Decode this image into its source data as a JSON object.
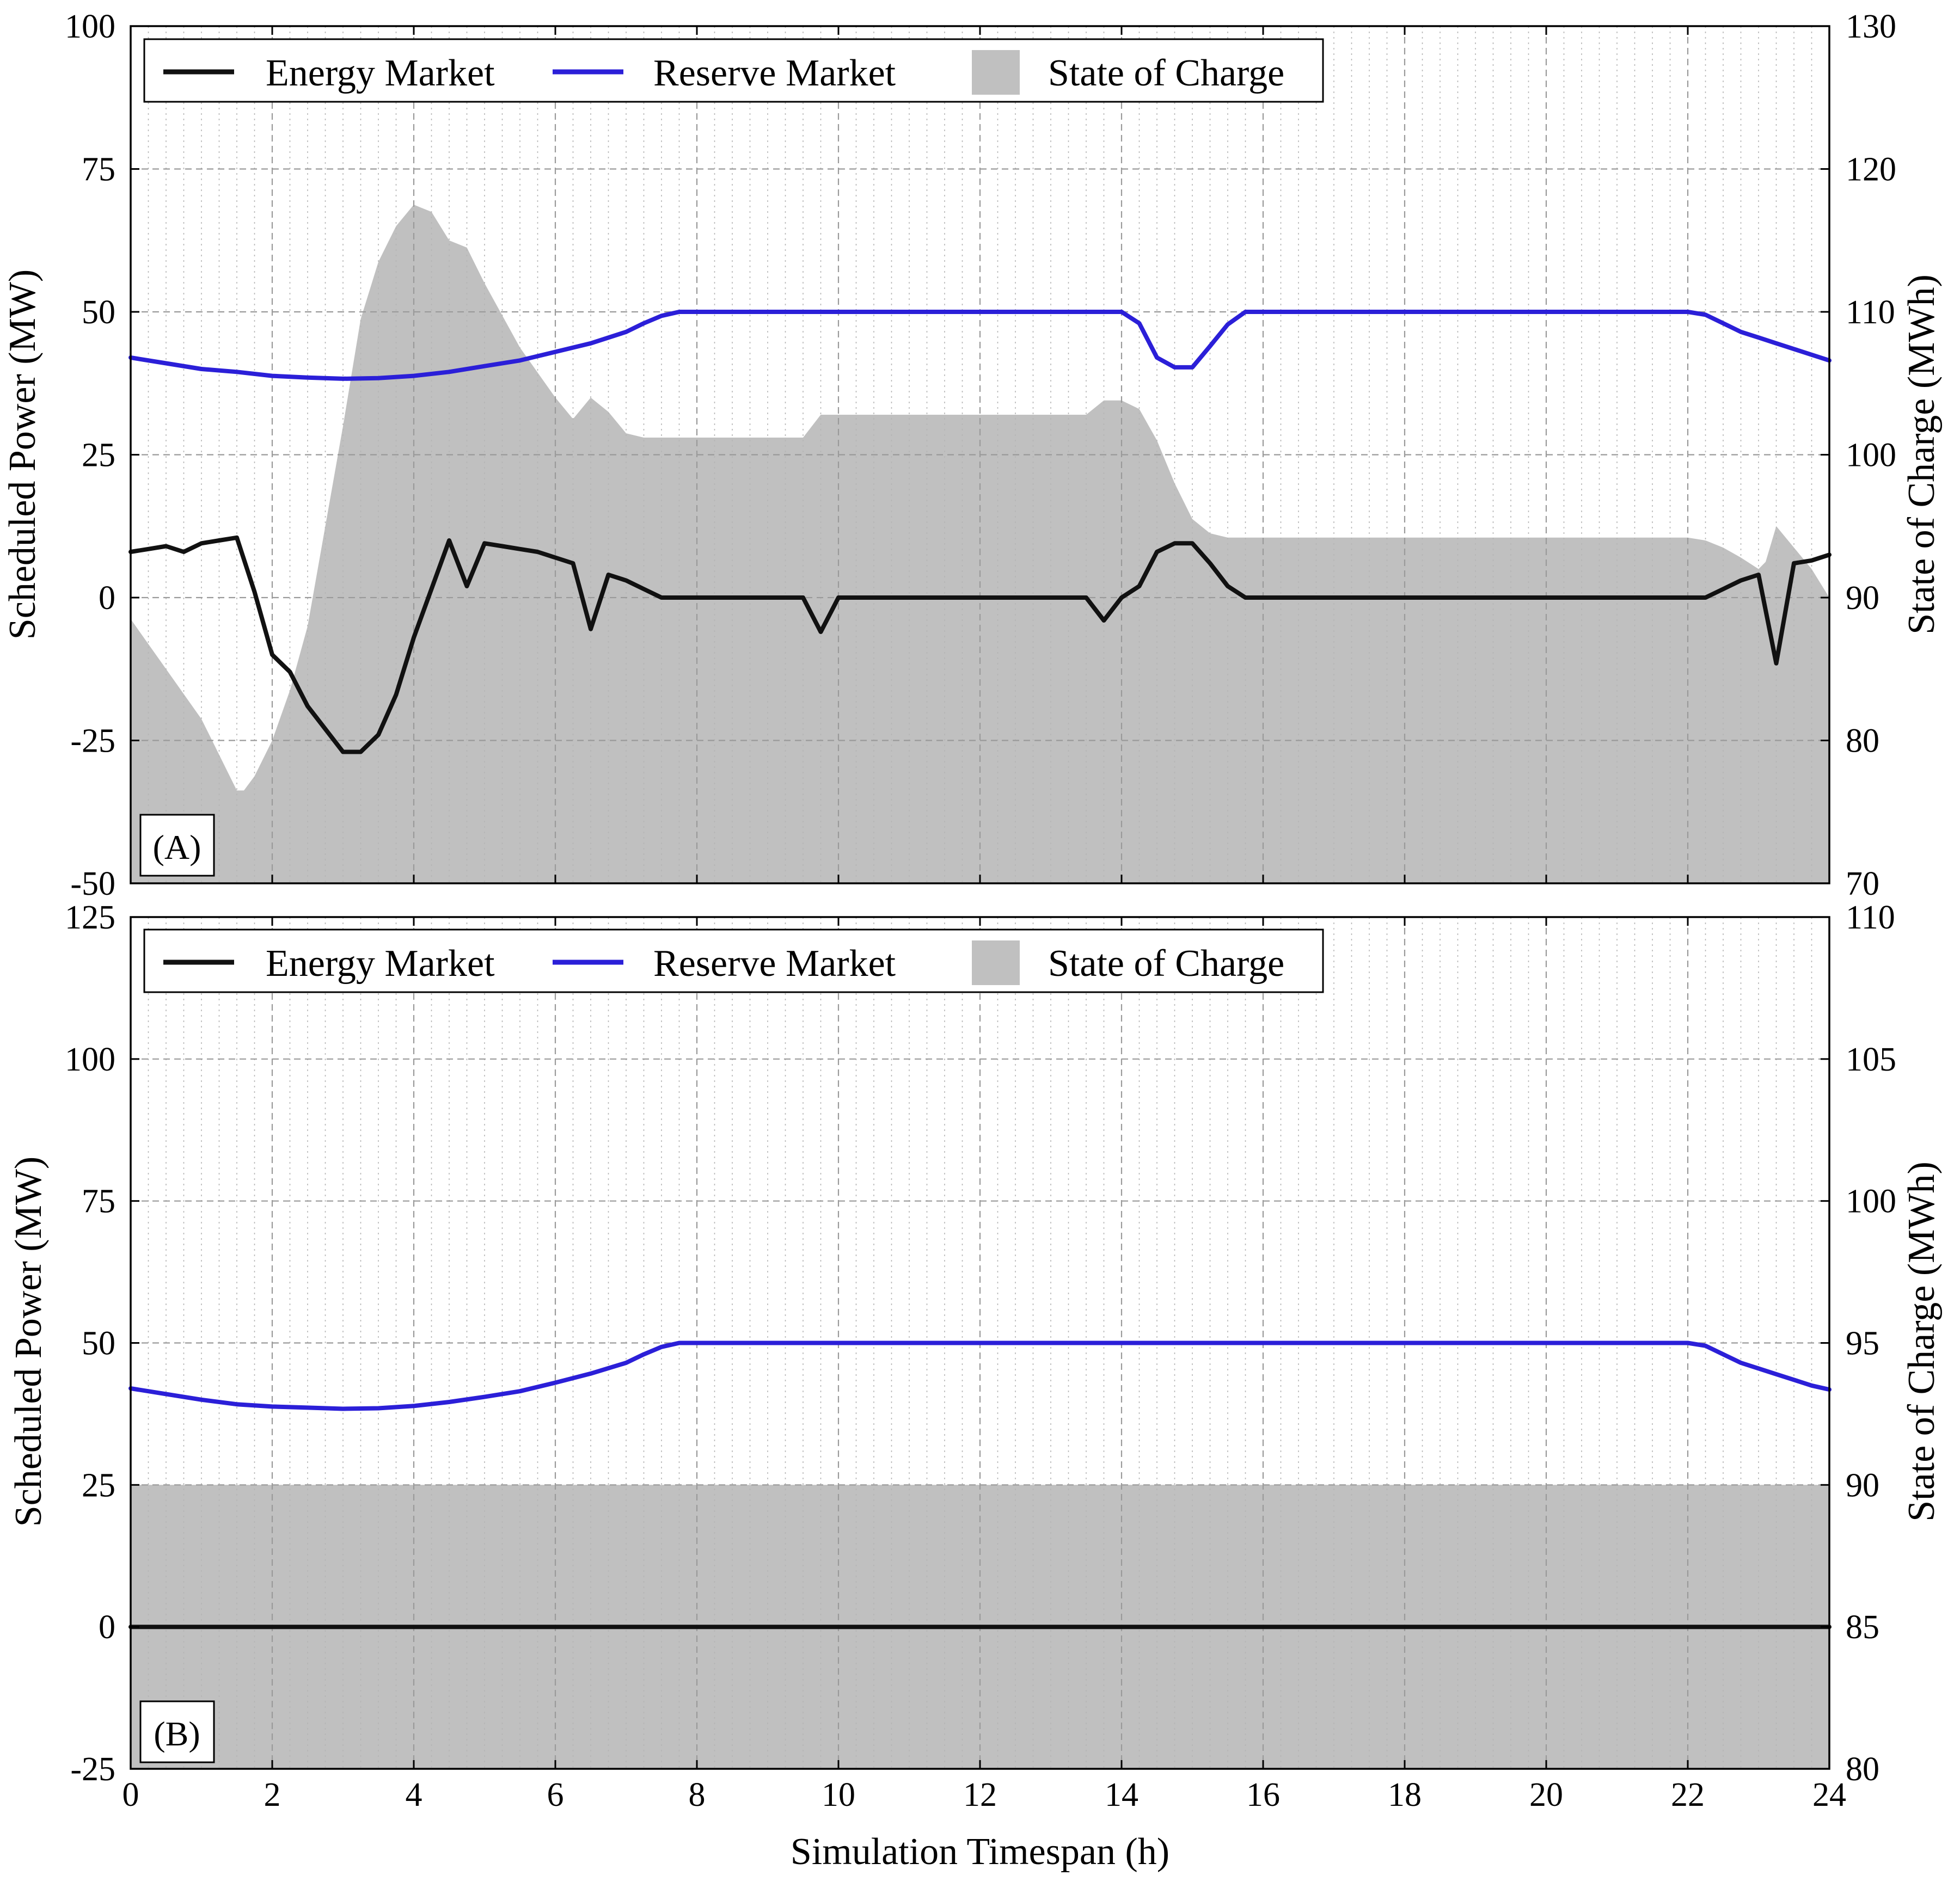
{
  "chart_data": [
    {
      "type": "line",
      "panel_label": "(A)",
      "xlabel": "",
      "ylabel": "Scheduled Power (MW)",
      "y2label": "State of Charge (MWh)",
      "xlim": [
        0,
        24
      ],
      "ylim": [
        -50,
        100
      ],
      "y2lim": [
        70,
        130
      ],
      "x_ticks": [
        0,
        2,
        4,
        6,
        8,
        10,
        12,
        14,
        16,
        18,
        20,
        22,
        24
      ],
      "y_ticks": [
        -50,
        -25,
        0,
        25,
        50,
        75,
        100
      ],
      "y2_ticks": [
        70,
        80,
        90,
        100,
        110,
        120,
        130
      ],
      "grid": true,
      "legend": {
        "placement": "top-left",
        "entries": [
          "Energy Market",
          "Reserve Market",
          "State of Charge"
        ]
      },
      "colors": {
        "energy": "#111111",
        "reserve": "#2b1fd8",
        "soc": "#c0c0c0"
      },
      "series": [
        {
          "name": "Energy Market",
          "axis": "left",
          "kind": "line",
          "x": [
            0,
            0.25,
            0.5,
            0.75,
            1.0,
            1.25,
            1.5,
            1.75,
            2.0,
            2.25,
            2.5,
            2.75,
            3.0,
            3.25,
            3.5,
            3.75,
            4.0,
            4.25,
            4.5,
            4.75,
            5.0,
            5.25,
            5.5,
            5.75,
            6.0,
            6.25,
            6.5,
            6.75,
            7.0,
            7.25,
            7.5,
            7.75,
            8.0,
            9.5,
            9.75,
            10.0,
            13.5,
            13.75,
            14.0,
            14.25,
            14.5,
            14.75,
            15.0,
            15.25,
            15.5,
            15.75,
            16.0,
            22.0,
            22.25,
            22.5,
            22.75,
            23.0,
            23.25,
            23.5,
            23.75,
            24.0
          ],
          "values": [
            8,
            8.5,
            9,
            8,
            9.5,
            10,
            10.5,
            1,
            -10,
            -13,
            -19,
            -23,
            -27,
            -27,
            -24,
            -17,
            -7,
            1.5,
            10,
            2,
            9.5,
            9,
            8.5,
            8,
            7,
            6,
            -5.5,
            4,
            3,
            1.5,
            0,
            0,
            0,
            0,
            -6,
            0,
            0,
            -4,
            0,
            2,
            8,
            9.5,
            9.5,
            6,
            2,
            0,
            0,
            0,
            0,
            1.5,
            3,
            4,
            -11.5,
            6,
            6.5,
            7.5
          ]
        },
        {
          "name": "Reserve Market",
          "axis": "left",
          "kind": "line",
          "x": [
            0,
            0.5,
            1.0,
            1.5,
            2.0,
            2.5,
            3.0,
            3.5,
            4.0,
            4.5,
            5.0,
            5.5,
            6.0,
            6.5,
            7.0,
            7.25,
            7.5,
            7.75,
            8.0,
            14.0,
            14.25,
            14.5,
            14.75,
            15.0,
            15.25,
            15.5,
            15.75,
            16.0,
            22.0,
            22.25,
            22.5,
            22.75,
            23.0,
            23.25,
            23.5,
            23.75,
            24.0
          ],
          "values": [
            42,
            41,
            40,
            39.5,
            38.8,
            38.5,
            38.3,
            38.4,
            38.8,
            39.5,
            40.5,
            41.5,
            43,
            44.5,
            46.5,
            48,
            49.3,
            50,
            50,
            50,
            48,
            42,
            40.3,
            40.3,
            44,
            47.8,
            50,
            50,
            50,
            49.5,
            48,
            46.5,
            45.5,
            44.5,
            43.5,
            42.5,
            41.5
          ]
        },
        {
          "name": "State of Charge",
          "axis": "right",
          "kind": "area",
          "x": [
            0,
            0.5,
            1.0,
            1.4,
            1.5,
            1.6,
            1.75,
            2.0,
            2.25,
            2.5,
            2.75,
            3.0,
            3.25,
            3.5,
            3.75,
            4.0,
            4.25,
            4.5,
            4.75,
            5.0,
            5.5,
            6.0,
            6.25,
            6.5,
            6.75,
            7.0,
            7.25,
            7.5,
            7.75,
            8.0,
            9.5,
            9.75,
            10.0,
            13.5,
            13.75,
            14.0,
            14.25,
            14.5,
            14.75,
            15.0,
            15.25,
            15.5,
            15.75,
            16.0,
            22.0,
            22.25,
            22.5,
            22.75,
            23.0,
            23.1,
            23.25,
            23.5,
            23.75,
            24.0
          ],
          "values": [
            88.5,
            85,
            81.5,
            77.5,
            76.5,
            76.5,
            77.5,
            80,
            83.5,
            88,
            95,
            102,
            109.5,
            113.5,
            116,
            117.5,
            117,
            115,
            114.5,
            112,
            107.5,
            104,
            102.5,
            104,
            103,
            101.5,
            101.2,
            101.2,
            101.2,
            101.2,
            101.2,
            102.8,
            102.8,
            102.8,
            103.8,
            103.8,
            103.2,
            101,
            98,
            95.5,
            94.5,
            94.2,
            94.2,
            94.2,
            94.2,
            94,
            93.5,
            92.8,
            92,
            92.5,
            95,
            93.5,
            92,
            90
          ]
        }
      ]
    },
    {
      "type": "line",
      "panel_label": "(B)",
      "xlabel": "Simulation Timespan (h)",
      "ylabel": "Scheduled Power (MW)",
      "y2label": "State of Charge (MWh)",
      "xlim": [
        0,
        24
      ],
      "ylim": [
        -25,
        125
      ],
      "y2lim": [
        80,
        110
      ],
      "x_ticks": [
        0,
        2,
        4,
        6,
        8,
        10,
        12,
        14,
        16,
        18,
        20,
        22,
        24
      ],
      "y_ticks": [
        -25,
        0,
        25,
        50,
        75,
        100,
        125
      ],
      "y2_ticks": [
        80,
        85,
        90,
        95,
        100,
        105,
        110
      ],
      "grid": true,
      "legend": {
        "placement": "top-left",
        "entries": [
          "Energy Market",
          "Reserve Market",
          "State of Charge"
        ]
      },
      "colors": {
        "energy": "#111111",
        "reserve": "#2b1fd8",
        "soc": "#c0c0c0"
      },
      "series": [
        {
          "name": "Energy Market",
          "axis": "left",
          "kind": "line",
          "x": [
            0,
            24
          ],
          "values": [
            0,
            0
          ]
        },
        {
          "name": "Reserve Market",
          "axis": "left",
          "kind": "line",
          "x": [
            0,
            0.5,
            1.0,
            1.5,
            2.0,
            2.5,
            3.0,
            3.5,
            4.0,
            4.5,
            5.0,
            5.5,
            6.0,
            6.5,
            7.0,
            7.25,
            7.5,
            7.75,
            8.0,
            22.0,
            22.25,
            22.5,
            22.75,
            23.0,
            23.25,
            23.5,
            23.75,
            24.0
          ],
          "values": [
            42,
            41,
            40,
            39.2,
            38.8,
            38.6,
            38.4,
            38.5,
            38.9,
            39.6,
            40.5,
            41.5,
            43,
            44.6,
            46.5,
            48,
            49.3,
            50,
            50,
            50,
            49.5,
            48,
            46.5,
            45.5,
            44.5,
            43.5,
            42.5,
            41.8
          ]
        },
        {
          "name": "State of Charge",
          "axis": "right",
          "kind": "area",
          "x": [
            0,
            24
          ],
          "values": [
            90,
            90
          ]
        }
      ]
    }
  ]
}
